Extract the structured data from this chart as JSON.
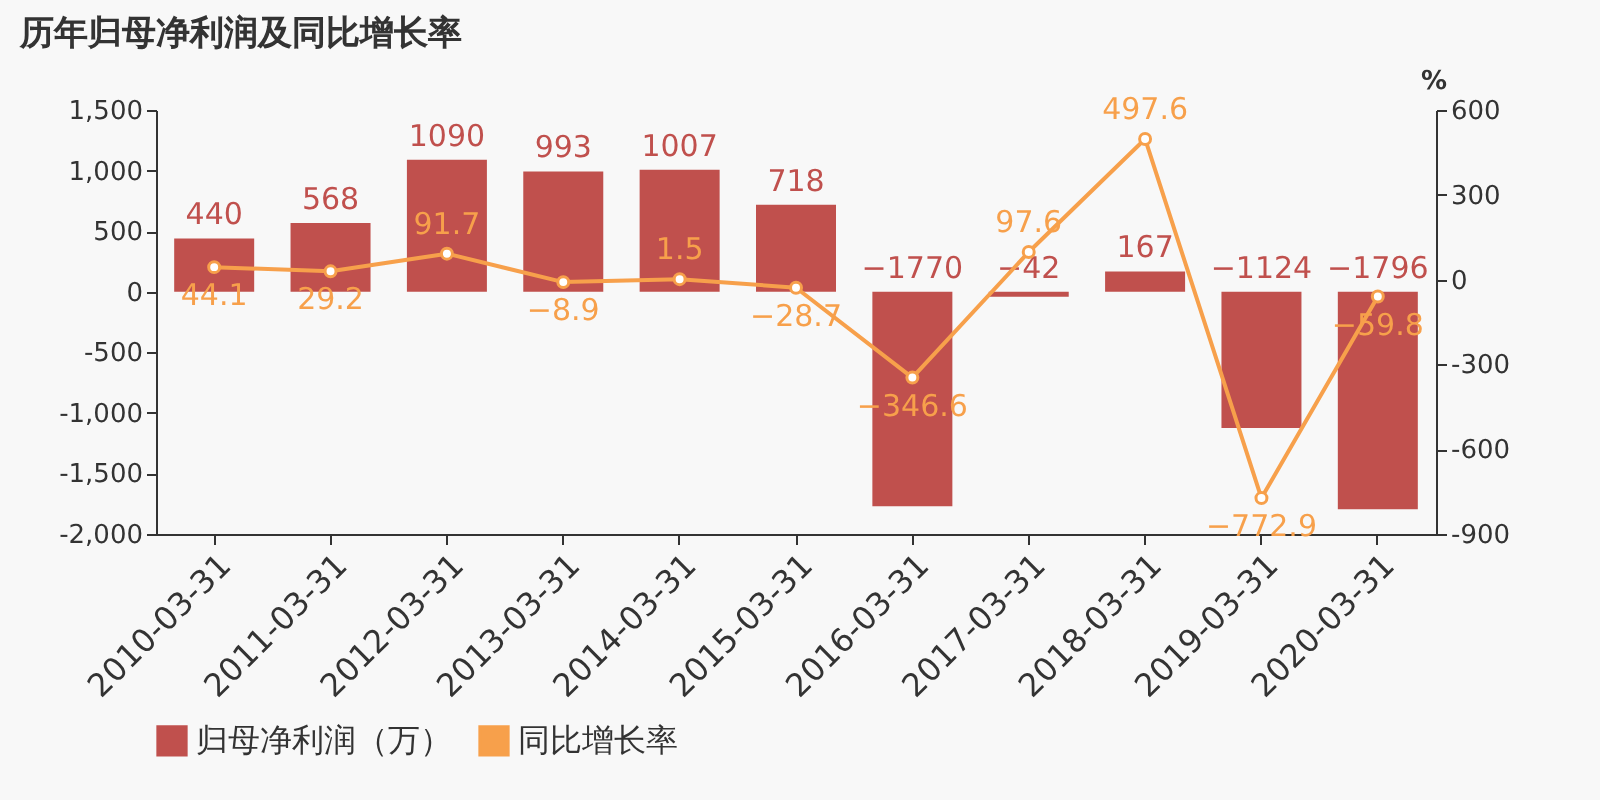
{
  "chart_data": {
    "type": "bar",
    "title": "历年归母净利润及同比增长率",
    "categories": [
      "2010-03-31",
      "2011-03-31",
      "2012-03-31",
      "2013-03-31",
      "2014-03-31",
      "2015-03-31",
      "2016-03-31",
      "2017-03-31",
      "2018-03-31",
      "2019-03-31",
      "2020-03-31"
    ],
    "series": [
      {
        "name": "归母净利润（万）",
        "color": "#c0504d",
        "values": [
          440,
          568,
          1090,
          993,
          1007,
          718,
          -1770,
          -42,
          167,
          -1124,
          -1796
        ]
      },
      {
        "name": "同比增长率",
        "type": "line",
        "axis": "y2",
        "color": "#f7a04b",
        "marker": "circle",
        "values": [
          44.1,
          29.2,
          91.7,
          -8.9,
          1.5,
          -28.7,
          -346.6,
          97.6,
          497.6,
          -772.9,
          -59.8
        ]
      }
    ],
    "ylim": [
      -2000,
      1500
    ],
    "yticks": [
      {
        "value": -2000,
        "label": "-2,000"
      },
      {
        "value": -1500,
        "label": "-1,500"
      },
      {
        "value": -1000,
        "label": "-1,000"
      },
      -500,
      0,
      500,
      {
        "value": 1000,
        "label": "1,000"
      },
      {
        "value": 1500,
        "label": "1,500"
      }
    ],
    "y2label": "%",
    "y2lim": [
      -900,
      600
    ],
    "y2ticks": [
      -900,
      -600,
      -300,
      0,
      300,
      600
    ],
    "data_labels": true,
    "legend": "bottom",
    "grid": false
  }
}
